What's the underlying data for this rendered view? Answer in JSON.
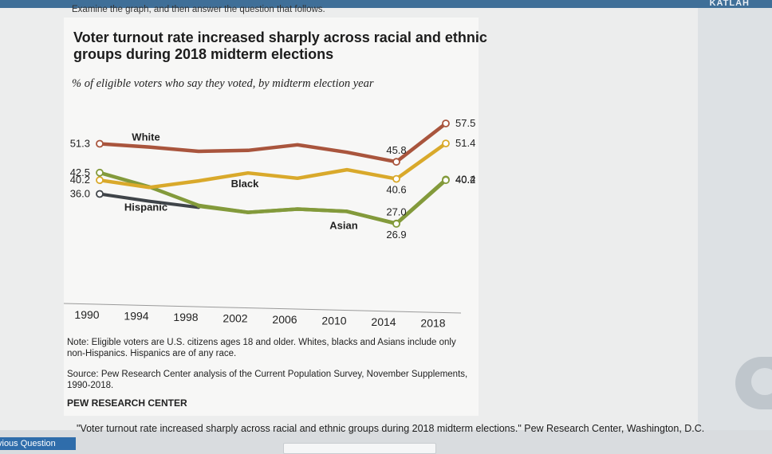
{
  "header": {
    "brand": "KATLAH",
    "prompt": "Examine the graph, and then answer the question that follows."
  },
  "footer": {
    "citation": "\"Voter turnout rate increased sharply across racial and ethnic groups during 2018 midterm elections.\" Pew Research Center, Washington, D.C.",
    "prev_button": "vious Question"
  },
  "colors": {
    "white": "#a9553d",
    "black": "#d9a92b",
    "hispanic": "#839a3b",
    "asian": "#3f4449"
  },
  "chart_data": {
    "type": "line",
    "title": "Voter turnout rate increased sharply across racial and ethnic groups during 2018 midterm elections",
    "subtitle": "% of eligible voters who say they voted, by midterm election year",
    "xlabel": "",
    "ylabel": "",
    "x": [
      1990,
      1994,
      1998,
      2002,
      2006,
      2010,
      2014,
      2018
    ],
    "ylim": [
      20,
      60
    ],
    "grid": false,
    "legend": "none",
    "series": [
      {
        "name": "White",
        "color": "#a9553d",
        "values": [
          51.3,
          50.3,
          49.0,
          49.3,
          51.0,
          48.7,
          45.8,
          57.5
        ]
      },
      {
        "name": "Black",
        "color": "#d9a92b",
        "values": [
          40.2,
          38.0,
          40.0,
          42.4,
          40.8,
          43.4,
          40.6,
          51.4
        ]
      },
      {
        "name": "Asian",
        "color": "#3f4449",
        "values": [
          36.0,
          33.8,
          31.9,
          null,
          null,
          null,
          null,
          null
        ]
      },
      {
        "name": "Hispanic",
        "color": "#839a3b",
        "values": [
          42.5,
          38.2,
          32.5,
          30.4,
          31.4,
          30.7,
          27.0,
          40.4
        ]
      },
      {
        "name": "Asian",
        "color": "#839a3b",
        "values": [
          null,
          null,
          32.3,
          30.4,
          31.4,
          30.7,
          26.9,
          40.2
        ]
      }
    ],
    "point_labels": [
      {
        "text": "51.3",
        "series": 0,
        "index": 0,
        "pos": "left"
      },
      {
        "text": "45.8",
        "series": 0,
        "index": 6,
        "pos": "above"
      },
      {
        "text": "57.5",
        "series": 0,
        "index": 7,
        "pos": "right"
      },
      {
        "text": "40.2",
        "series": 1,
        "index": 0,
        "pos": "left"
      },
      {
        "text": "40.6",
        "series": 1,
        "index": 6,
        "pos": "below"
      },
      {
        "text": "51.4",
        "series": 1,
        "index": 7,
        "pos": "right"
      },
      {
        "text": "36.0",
        "series": 2,
        "index": 0,
        "pos": "left"
      },
      {
        "text": "42.5",
        "series": 3,
        "index": 0,
        "pos": "left"
      },
      {
        "text": "27.0",
        "series": 3,
        "index": 6,
        "pos": "above"
      },
      {
        "text": "40.4",
        "series": 3,
        "index": 7,
        "pos": "right"
      },
      {
        "text": "26.9",
        "series": 4,
        "index": 6,
        "pos": "below"
      },
      {
        "text": "40.2",
        "series": 4,
        "index": 7,
        "pos": "right"
      }
    ],
    "series_labels": [
      {
        "text": "White",
        "series": 0,
        "index": 1
      },
      {
        "text": "Black",
        "series": 1,
        "index": 3
      },
      {
        "text": "Hispanic",
        "series": 3,
        "index": 1
      },
      {
        "text": "Asian",
        "series": 4,
        "index": 5
      }
    ],
    "note": "Note: Eligible voters are U.S. citizens ages 18 and older. Whites, blacks and Asians include only non-Hispanics. Hispanics are of any race.",
    "source": "Source: Pew Research Center analysis of the Current Population Survey, November Supplements, 1990-2018.",
    "credit": "PEW RESEARCH CENTER"
  }
}
